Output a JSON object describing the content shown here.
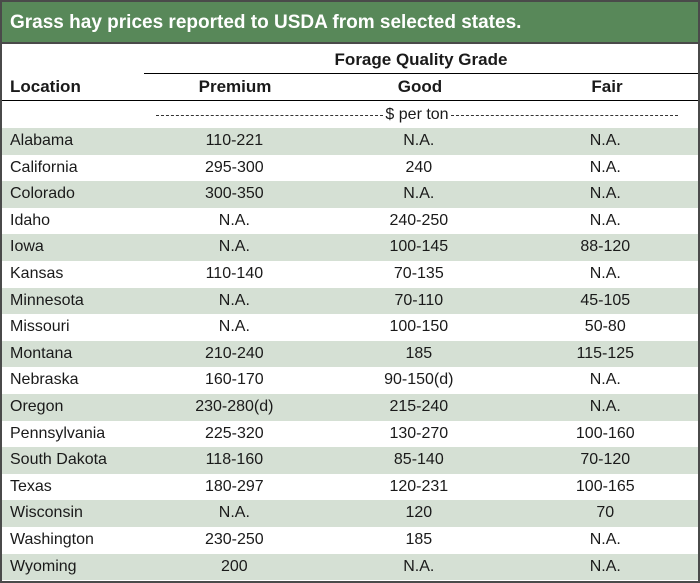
{
  "title": "Grass hay prices reported to USDA from selected states.",
  "header": {
    "group_label": "Forage Quality Grade",
    "location_label": "Location",
    "columns": [
      "Premium",
      "Good",
      "Fair"
    ]
  },
  "unit_label": "$ per ton",
  "colors": {
    "title_bar": "#588859",
    "row_shade": "#d5e0d4"
  },
  "rows": [
    {
      "location": "Alabama",
      "premium": "110-221",
      "good": "N.A.",
      "fair": "N.A."
    },
    {
      "location": "California",
      "premium": "295-300",
      "good": "240",
      "fair": "N.A."
    },
    {
      "location": "Colorado",
      "premium": "300-350",
      "good": "N.A.",
      "fair": "N.A."
    },
    {
      "location": "Idaho",
      "premium": "N.A.",
      "good": "240-250",
      "fair": "N.A."
    },
    {
      "location": "Iowa",
      "premium": "N.A.",
      "good": "100-145",
      "fair": "88-120"
    },
    {
      "location": "Kansas",
      "premium": "110-140",
      "good": "70-135",
      "fair": "N.A."
    },
    {
      "location": "Minnesota",
      "premium": "N.A.",
      "good": "70-110",
      "fair": "45-105"
    },
    {
      "location": "Missouri",
      "premium": "N.A.",
      "good": "100-150",
      "fair": "50-80"
    },
    {
      "location": "Montana",
      "premium": "210-240",
      "good": "185",
      "fair": "115-125"
    },
    {
      "location": "Nebraska",
      "premium": "160-170",
      "good": "90-150(d)",
      "fair": "N.A."
    },
    {
      "location": "Oregon",
      "premium": "230-280(d)",
      "good": "215-240",
      "fair": "N.A."
    },
    {
      "location": "Pennsylvania",
      "premium": "225-320",
      "good": "130-270",
      "fair": "100-160"
    },
    {
      "location": "South Dakota",
      "premium": "118-160",
      "good": "85-140",
      "fair": "70-120"
    },
    {
      "location": "Texas",
      "premium": "180-297",
      "good": "120-231",
      "fair": "100-165"
    },
    {
      "location": "Wisconsin",
      "premium": "N.A.",
      "good": "120",
      "fair": "70"
    },
    {
      "location": "Washington",
      "premium": "230-250",
      "good": "185",
      "fair": "N.A."
    },
    {
      "location": "Wyoming",
      "premium": "200",
      "good": "N.A.",
      "fair": "N.A."
    }
  ]
}
